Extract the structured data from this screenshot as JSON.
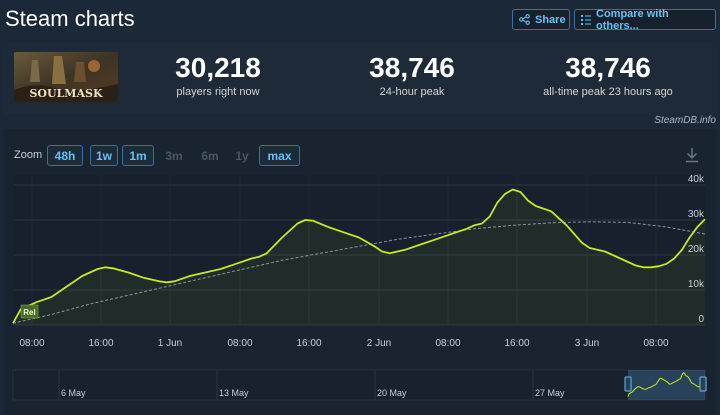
{
  "header": {
    "title": "Steam charts",
    "share_label": "Share",
    "compare_label": "Compare with others..."
  },
  "game": {
    "name": "SOULMASK"
  },
  "stats": [
    {
      "value": "30,218",
      "label": "players right now"
    },
    {
      "value": "38,746",
      "label": "24-hour peak"
    },
    {
      "value": "38,746",
      "label": "all-time peak 23 hours ago"
    }
  ],
  "watermark": "SteamDB.info",
  "zoom": {
    "label": "Zoom",
    "options": [
      {
        "label": "48h",
        "active": true
      },
      {
        "label": "1w",
        "active": true
      },
      {
        "label": "1m",
        "active": true
      },
      {
        "label": "3m",
        "active": false
      },
      {
        "label": "6m",
        "active": false
      },
      {
        "label": "1y",
        "active": false
      },
      {
        "label": "max",
        "active": true
      }
    ]
  },
  "chart_data": {
    "type": "line",
    "release_marker": "Rel",
    "x_ticks": [
      "08:00",
      "16:00",
      "1 Jun",
      "08:00",
      "16:00",
      "2 Jun",
      "08:00",
      "16:00",
      "3 Jun",
      "08:00"
    ],
    "y_ticks": [
      "0",
      "10k",
      "20k",
      "30k",
      "40k"
    ],
    "ylim": [
      0,
      40000
    ],
    "series": [
      {
        "values": [
          [
            0,
            500
          ],
          [
            1,
            4500
          ],
          [
            3,
            6500
          ],
          [
            5,
            8000
          ],
          [
            7,
            11000
          ],
          [
            9,
            14000
          ],
          [
            11,
            16000
          ],
          [
            12,
            16500
          ],
          [
            13,
            16200
          ],
          [
            15,
            15000
          ],
          [
            17,
            13500
          ],
          [
            19,
            12500
          ],
          [
            20,
            12200
          ],
          [
            21,
            12500
          ],
          [
            23,
            14000
          ],
          [
            25,
            15000
          ],
          [
            27,
            16000
          ],
          [
            29,
            17500
          ],
          [
            31,
            19000
          ],
          [
            32,
            19500
          ],
          [
            33,
            20500
          ],
          [
            35,
            25000
          ],
          [
            37,
            29000
          ],
          [
            38,
            30000
          ],
          [
            39,
            29800
          ],
          [
            41,
            28000
          ],
          [
            43,
            26500
          ],
          [
            45,
            25000
          ],
          [
            47,
            22500
          ],
          [
            48,
            21000
          ],
          [
            49,
            20500
          ],
          [
            51,
            21500
          ],
          [
            53,
            23000
          ],
          [
            55,
            24500
          ],
          [
            57,
            26000
          ],
          [
            59,
            27500
          ],
          [
            60,
            28500
          ],
          [
            61,
            29000
          ],
          [
            62,
            31000
          ],
          [
            63,
            35000
          ],
          [
            64,
            37500
          ],
          [
            65,
            38700
          ],
          [
            66,
            38000
          ],
          [
            67,
            35500
          ],
          [
            68,
            34000
          ],
          [
            70,
            32500
          ],
          [
            72,
            28500
          ],
          [
            73,
            26000
          ],
          [
            74,
            23500
          ],
          [
            75,
            22000
          ],
          [
            77,
            21000
          ],
          [
            79,
            19000
          ],
          [
            81,
            17000
          ],
          [
            82,
            16500
          ],
          [
            83,
            16500
          ],
          [
            84,
            16800
          ],
          [
            85,
            17500
          ],
          [
            86,
            19000
          ],
          [
            87,
            21500
          ],
          [
            88,
            25000
          ],
          [
            89,
            28000
          ],
          [
            90,
            30200
          ]
        ]
      },
      {
        "values": [
          [
            0,
            500
          ],
          [
            5,
            3000
          ],
          [
            10,
            6000
          ],
          [
            15,
            8500
          ],
          [
            20,
            11000
          ],
          [
            25,
            13500
          ],
          [
            30,
            16000
          ],
          [
            35,
            18500
          ],
          [
            40,
            20500
          ],
          [
            45,
            22500
          ],
          [
            50,
            24500
          ],
          [
            55,
            26000
          ],
          [
            60,
            27500
          ],
          [
            65,
            28500
          ],
          [
            70,
            29200
          ],
          [
            75,
            29500
          ],
          [
            80,
            29300
          ],
          [
            85,
            28000
          ],
          [
            90,
            26000
          ]
        ]
      }
    ],
    "navigator_ticks": [
      "6 May",
      "13 May",
      "20 May",
      "27 May"
    ]
  }
}
